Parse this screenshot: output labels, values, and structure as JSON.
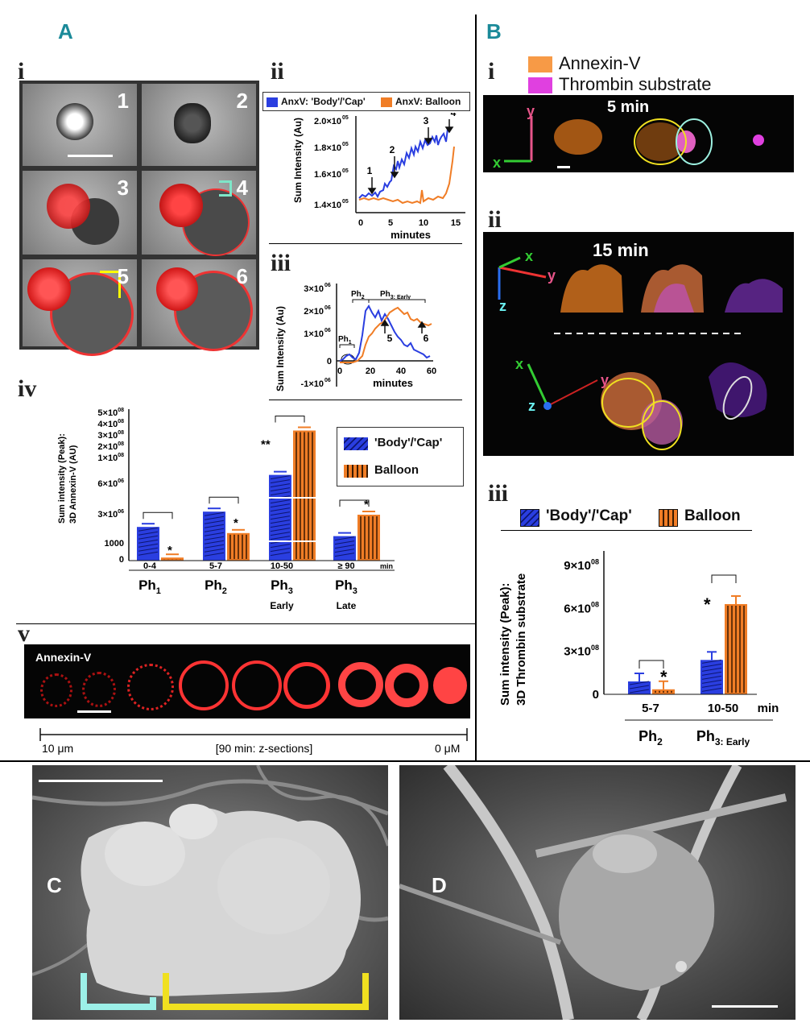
{
  "panels": {
    "A": "A",
    "B": "B",
    "C": "C",
    "D": "D"
  },
  "romans": {
    "Ai": "i",
    "Aii": "ii",
    "Aiii": "iii",
    "Aiv": "iv",
    "Av": "v",
    "Bi": "i",
    "Bii": "ii",
    "Biii": "iii"
  },
  "cell_numbers": [
    "1",
    "2",
    "3",
    "4",
    "5",
    "6"
  ],
  "Aii": {
    "legend": [
      "AnxV: 'Body'/'Cap'",
      "AnxV: Balloon"
    ],
    "ylabel": "Sum Intensity (Au)",
    "xlabel": "minutes",
    "yticks": [
      "2.0×10",
      "1.8×10",
      "1.6×10",
      "1.4×10"
    ],
    "yexp": "05",
    "xticks": [
      "0",
      "5",
      "10",
      "15"
    ],
    "arrows": [
      "1",
      "2",
      "3",
      "4"
    ],
    "colors": {
      "body": "#2a3ee0",
      "balloon": "#f07d26"
    }
  },
  "Aiii": {
    "ylabel": "Sum Intensity (Au)",
    "xlabel": "minutes",
    "yticks": [
      "3×10",
      "2×10",
      "1×10",
      "0",
      "-1×10"
    ],
    "yexp": "06",
    "xticks": [
      "0",
      "20",
      "40",
      "60"
    ],
    "phases": [
      "Ph",
      "Ph",
      "Ph"
    ],
    "phase_subs": [
      "1",
      "2",
      "3: Early"
    ],
    "arrows": [
      "5",
      "6"
    ]
  },
  "chart_data": [
    {
      "type": "bar",
      "title": "",
      "ylabel": "Sum intensity (Peak): 3D Annexin-V (AU)",
      "yticks": [
        "5×10",
        "4×10",
        "3×10",
        "2×10",
        "1×10",
        "6×10",
        "3×10",
        "1000",
        "0"
      ],
      "ytick_exps": [
        "08",
        "08",
        "08",
        "08",
        "08",
        "06",
        "06",
        "",
        ""
      ],
      "categories": [
        "0-4",
        "5-7",
        "10-50",
        "≥ 90"
      ],
      "unit": "min",
      "phases": [
        "Ph",
        "Ph",
        "Ph",
        "Ph"
      ],
      "phase_subs": [
        "1",
        "2",
        "3",
        "3"
      ],
      "phase_notes": [
        "",
        "",
        "Early",
        "Late"
      ],
      "legend": [
        "'Body'/'Cap'",
        "Balloon"
      ],
      "significance": [
        "*",
        "*",
        "**",
        "*"
      ],
      "series": [
        {
          "name": "'Body'/'Cap'",
          "heights": [
            0.22,
            0.32,
            0.56,
            0.16
          ]
        },
        {
          "name": "Balloon",
          "heights": [
            0.02,
            0.18,
            0.85,
            0.3
          ]
        }
      ]
    },
    {
      "type": "bar",
      "title": "",
      "ylabel": "Sum intensity (Peak): 3D Thrombin substrate",
      "yticks": [
        "9×10",
        "6×10",
        "3×10",
        "0"
      ],
      "ytick_exps": [
        "08",
        "08",
        "08",
        ""
      ],
      "categories": [
        "5-7",
        "10-50"
      ],
      "unit": "min",
      "phases": [
        "Ph",
        "Ph"
      ],
      "phase_subs": [
        "2",
        "3: Early"
      ],
      "legend": [
        "'Body'/'Cap'",
        "Balloon"
      ],
      "significance": [
        "*",
        "*"
      ],
      "series": [
        {
          "name": "'Body'/'Cap'",
          "values": [
            90000000.0,
            240000000.0
          ]
        },
        {
          "name": "Balloon",
          "values": [
            35000000.0,
            630000000.0
          ]
        }
      ],
      "ylim": [
        0,
        900000000.0
      ]
    }
  ],
  "Av": {
    "label": "Annexin-V",
    "left": "10 μm",
    "mid": "[90 min: z-sections]",
    "right": "0 μM"
  },
  "Bi": {
    "legend": [
      "Annexin-V",
      "Thrombin substrate"
    ],
    "time": "5 min",
    "axes": [
      "y",
      "x"
    ]
  },
  "Bii": {
    "time": "15 min",
    "axes_top": [
      "x",
      "y",
      "z"
    ],
    "axes_bottom": [
      "x",
      "y",
      "z"
    ]
  },
  "colors": {
    "teal": "#1b8a99",
    "blue": "#2a3ee0",
    "orange": "#f07d26",
    "magenta": "#e040e0",
    "yellow": "#f0e020"
  }
}
